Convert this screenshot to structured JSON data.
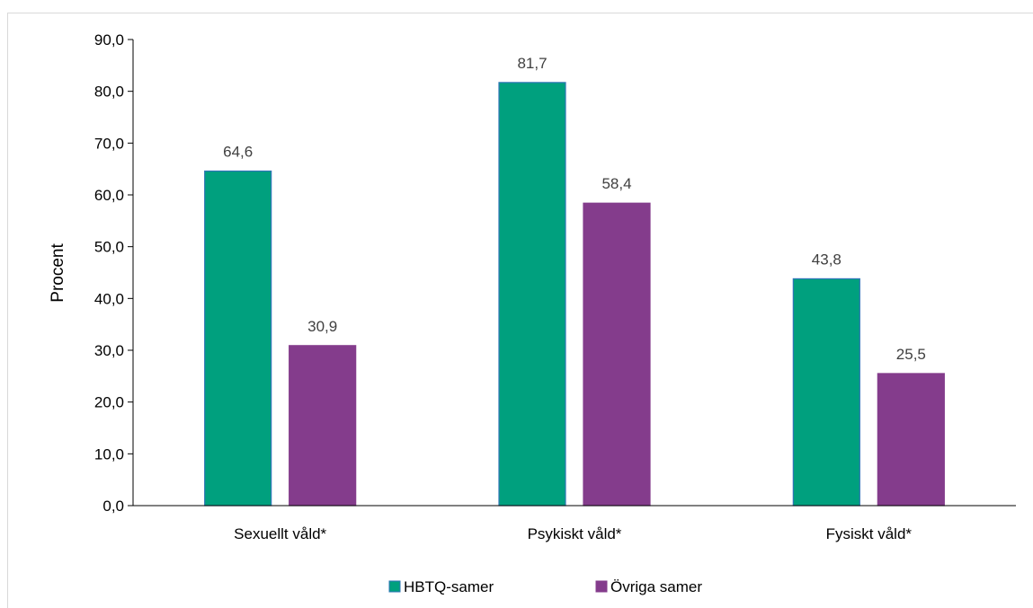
{
  "chart_data": {
    "type": "bar",
    "categories": [
      "Sexuellt våld*",
      "Psykiskt våld*",
      "Fysiskt våld*"
    ],
    "series": [
      {
        "name": "HBTQ-samer",
        "values": [
          64.6,
          81.7,
          43.8
        ],
        "labels": [
          "64,6",
          "81,7",
          "43,8"
        ],
        "color": "#00A07E",
        "edge": "#2E75B6"
      },
      {
        "name": "Övriga samer",
        "values": [
          30.9,
          58.4,
          25.5
        ],
        "labels": [
          "30,9",
          "58,4",
          "25,5"
        ],
        "color": "#843C8C",
        "edge": "#843C8C"
      }
    ],
    "ylabel": "Procent",
    "ylim": [
      0,
      90
    ],
    "yticks": [
      0,
      10,
      20,
      30,
      40,
      50,
      60,
      70,
      80,
      90
    ],
    "ytick_labels": [
      "0,0",
      "10,0",
      "20,0",
      "30,0",
      "40,0",
      "50,0",
      "60,0",
      "70,0",
      "80,0",
      "90,0"
    ],
    "grid": false,
    "legend_position": "bottom"
  }
}
